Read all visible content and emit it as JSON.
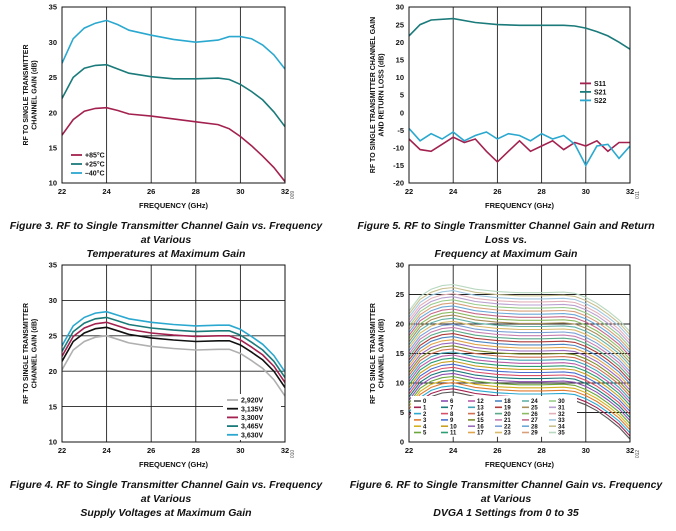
{
  "chart_data": [
    {
      "id": "f3",
      "type": "line",
      "caption": [
        "Figure 3. RF to Single Transmitter Channel Gain vs. Frequency at Various",
        "Temperatures at Maximum Gain"
      ],
      "xlabel": "FREQUENCY (GHz)",
      "ylabel": [
        "RF TO SINGLE TRANSMITTER",
        "CHANNEL GAIN (dB)"
      ],
      "xlim": [
        22,
        32
      ],
      "ylim": [
        10,
        35
      ],
      "xticks": [
        22,
        24,
        26,
        28,
        30,
        32
      ],
      "yticks": [
        10,
        15,
        20,
        25,
        30,
        35
      ],
      "grid": "vertical",
      "legend_position": "bottom-left",
      "figure_code": "009",
      "series": [
        {
          "name": "+85°C",
          "color": "#a3214f",
          "x": [
            22,
            22.5,
            23,
            23.5,
            24,
            24.5,
            25,
            26,
            27,
            28,
            29,
            29.5,
            30,
            30.5,
            31,
            31.5,
            32
          ],
          "y": [
            16.8,
            19.0,
            20.2,
            20.6,
            20.7,
            20.3,
            19.8,
            19.5,
            19.1,
            18.7,
            18.3,
            17.7,
            16.6,
            15.3,
            13.8,
            12.2,
            10.2
          ]
        },
        {
          "name": "+25°C",
          "color": "#1b7a7a",
          "x": [
            22,
            22.5,
            23,
            23.5,
            24,
            24.5,
            25,
            26,
            27,
            28,
            29,
            29.5,
            30,
            30.5,
            31,
            31.5,
            32
          ],
          "y": [
            22.0,
            25.0,
            26.3,
            26.7,
            26.8,
            26.2,
            25.6,
            25.1,
            24.8,
            24.8,
            24.9,
            24.7,
            24.0,
            23.0,
            21.8,
            20.1,
            18.0
          ]
        },
        {
          "name": "–40°C",
          "color": "#2aa8cf",
          "x": [
            22,
            22.5,
            23,
            23.5,
            24,
            24.5,
            25,
            26,
            27,
            28,
            29,
            29.5,
            30,
            30.5,
            31,
            31.5,
            32
          ],
          "y": [
            27.0,
            30.5,
            32.0,
            32.7,
            33.1,
            32.5,
            31.7,
            31.0,
            30.4,
            30.0,
            30.3,
            30.8,
            30.8,
            30.5,
            29.6,
            28.2,
            26.2
          ]
        }
      ]
    },
    {
      "id": "f5",
      "type": "line",
      "caption": [
        "Figure 5. RF to Single Transmitter Channel Gain and Return Loss vs.",
        "Frequency at Maximum Gain"
      ],
      "xlabel": "FREQUENCY (GHz)",
      "ylabel": [
        "RF TO SINGLE TRANSMITTER CHANNEL GAIN",
        "AND RETURN LOSS (dB)"
      ],
      "xlim": [
        22,
        32
      ],
      "ylim": [
        -20,
        30
      ],
      "xticks": [
        22,
        24,
        26,
        28,
        30,
        32
      ],
      "yticks": [
        -20,
        -15,
        -10,
        -5,
        0,
        5,
        10,
        15,
        20,
        25,
        30
      ],
      "grid": "vertical",
      "legend_position": "right",
      "figure_code": "011",
      "series": [
        {
          "name": "S11",
          "color": "#a3214f",
          "x": [
            22,
            22.5,
            23,
            23.5,
            24,
            24.5,
            25,
            25.5,
            26,
            26.5,
            27,
            27.5,
            28,
            28.5,
            29,
            29.5,
            30,
            30.5,
            31,
            31.5,
            32
          ],
          "y": [
            -7.5,
            -10.5,
            -11.0,
            -9.0,
            -7.0,
            -8.5,
            -7.5,
            -11.0,
            -14.0,
            -11.0,
            -8.0,
            -11.0,
            -9.5,
            -8.0,
            -10.5,
            -8.5,
            -9.5,
            -8.0,
            -11.0,
            -8.5,
            -8.5
          ]
        },
        {
          "name": "S21",
          "color": "#1b7a7a",
          "x": [
            22,
            22.5,
            23,
            24,
            25,
            26,
            27,
            28,
            29,
            29.5,
            30,
            30.5,
            31,
            31.5,
            32
          ],
          "y": [
            21.8,
            25.0,
            26.3,
            26.7,
            25.6,
            25.0,
            24.8,
            24.8,
            24.8,
            24.6,
            24.0,
            23.0,
            21.8,
            20.0,
            18.0
          ]
        },
        {
          "name": "S22",
          "color": "#2aa8cf",
          "x": [
            22,
            22.5,
            23,
            23.5,
            24,
            24.5,
            25,
            25.5,
            26,
            26.5,
            27,
            27.5,
            28,
            28.5,
            29,
            29.5,
            30,
            30.5,
            31,
            31.5,
            32
          ],
          "y": [
            -4.5,
            -8.0,
            -6.0,
            -7.5,
            -5.5,
            -8.0,
            -6.5,
            -5.5,
            -7.5,
            -6.0,
            -6.5,
            -8.0,
            -6.0,
            -7.5,
            -6.5,
            -9.0,
            -15.0,
            -9.5,
            -9.0,
            -13.0,
            -9.5
          ]
        }
      ]
    },
    {
      "id": "f4",
      "type": "line",
      "caption": [
        "Figure 4. RF to Single Transmitter Channel Gain vs. Frequency at Various",
        "Supply Voltages at Maximum Gain"
      ],
      "xlabel": "FREQUENCY (GHz)",
      "ylabel": [
        "RF TO SINGLE TRANSMITTER",
        "CHANNEL GAIN (dB)"
      ],
      "xlim": [
        22,
        32
      ],
      "ylim": [
        10,
        35
      ],
      "xticks": [
        22,
        24,
        26,
        28,
        30,
        32
      ],
      "yticks": [
        10,
        15,
        20,
        25,
        30,
        35
      ],
      "grid": "both",
      "legend_position": "bottom-right",
      "figure_code": "010",
      "shape": {
        "x": [
          22,
          22.5,
          23,
          23.5,
          24,
          24.5,
          25,
          26,
          27,
          28,
          29,
          29.5,
          30,
          30.5,
          31,
          31.5,
          32
        ],
        "rel": [
          -4.8,
          -2.0,
          -0.8,
          -0.2,
          0,
          -0.5,
          -1.0,
          -1.5,
          -1.8,
          -2.0,
          -1.9,
          -1.9,
          -2.5,
          -3.5,
          -4.6,
          -6.2,
          -8.5
        ]
      },
      "series": [
        {
          "name": "2,920V",
          "color": "#b0b0b0",
          "peak": 25.0
        },
        {
          "name": "3,135V",
          "color": "#111111",
          "peak": 26.2
        },
        {
          "name": "3,300V",
          "color": "#a3214f",
          "peak": 26.9
        },
        {
          "name": "3,465V",
          "color": "#1b7a7a",
          "peak": 27.6
        },
        {
          "name": "3,630V",
          "color": "#2aa8cf",
          "peak": 28.4
        }
      ]
    },
    {
      "id": "f6",
      "type": "line",
      "caption": [
        "Figure 6. RF to Single Transmitter Channel Gain vs. Frequency at Various",
        "DVGA 1 Settings from 0 to 35"
      ],
      "xlabel": "FREQUENCY (GHz)",
      "ylabel": [
        "RF TO SINGLE TRANSMITTER",
        "CHANNEL GAIN (dB)"
      ],
      "xlim": [
        22,
        32
      ],
      "ylim": [
        0,
        30
      ],
      "xticks": [
        22,
        24,
        26,
        28,
        30,
        32
      ],
      "yticks": [
        0,
        5,
        10,
        15,
        20,
        25,
        30
      ],
      "grid": "both",
      "legend_position": "bottom-left",
      "figure_code": "012",
      "shape": {
        "x": [
          22,
          22.5,
          23,
          23.5,
          24,
          24.5,
          25,
          26,
          27,
          28,
          29,
          29.5,
          30,
          30.5,
          31,
          31.5,
          32
        ],
        "rel": [
          -4.5,
          -2.0,
          -0.8,
          -0.2,
          0,
          -0.4,
          -0.8,
          -1.2,
          -1.4,
          -1.4,
          -1.3,
          -1.5,
          -2.2,
          -3.2,
          -4.5,
          -6.0,
          -8.0
        ]
      },
      "settings": [
        "0",
        "1",
        "2",
        "3",
        "4",
        "5",
        "6",
        "7",
        "8",
        "9",
        "10",
        "11",
        "12",
        "13",
        "14",
        "15",
        "16",
        "17",
        "18",
        "19",
        "20",
        "21",
        "22",
        "23",
        "24",
        "25",
        "26",
        "27",
        "28",
        "29",
        "30",
        "31",
        "32",
        "33",
        "34",
        "35"
      ],
      "peak_first": 8.5,
      "peak_step": 0.52,
      "colors": [
        "#555555",
        "#a3214f",
        "#2aa8cf",
        "#e07a2f",
        "#d4b21f",
        "#6aa63c",
        "#8a4fb0",
        "#1b7a7a",
        "#d94f6a",
        "#4a6fd1",
        "#c9a020",
        "#2b9e74",
        "#b85ca8",
        "#3fa3b5",
        "#d07050",
        "#7d8c2a",
        "#9a6abf",
        "#e0a54a",
        "#4c86c2",
        "#b03a3a",
        "#5aaa88",
        "#c77fb0",
        "#7aa0d6",
        "#d9b96a",
        "#63b2a6",
        "#a88f5a",
        "#8bbb62",
        "#c66a8a",
        "#6aa8d8",
        "#d8a07a",
        "#9acb8a",
        "#b9a0d0",
        "#e2b0b8",
        "#a0c8e0",
        "#c8c090",
        "#b8d8c0"
      ]
    }
  ]
}
